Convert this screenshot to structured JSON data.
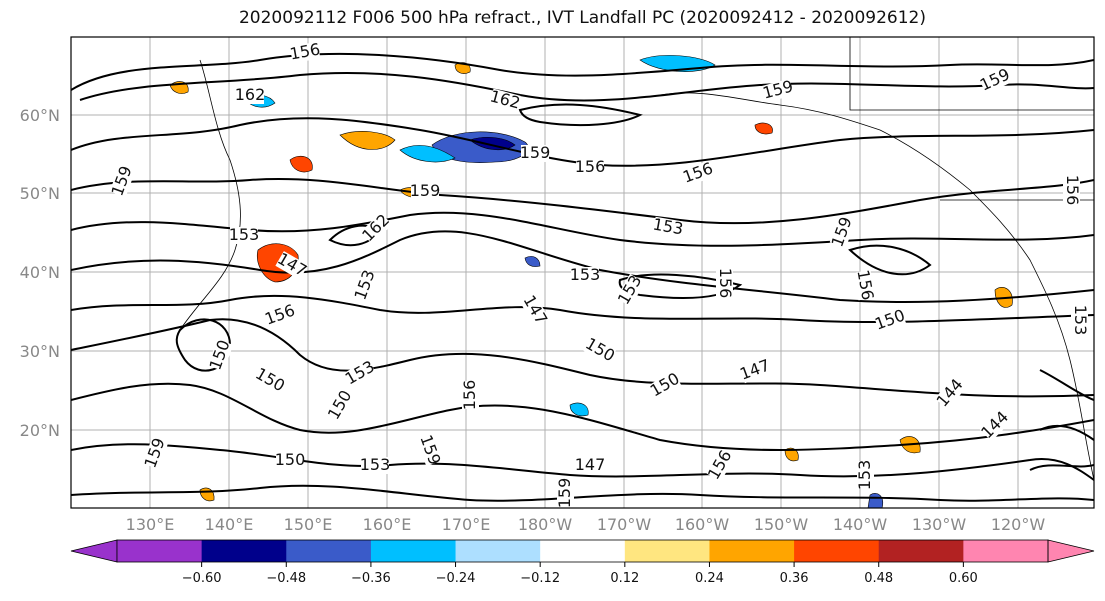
{
  "title": "2020092112 F006 500 hPa refract., IVT Landfall PC (2020092412 - 2020092612)",
  "lat_labels": [
    "60°N",
    "50°N",
    "40°N",
    "30°N",
    "20°N"
  ],
  "lon_labels": [
    "130°E",
    "140°E",
    "150°E",
    "160°E",
    "170°E",
    "180°W",
    "170°W",
    "160°W",
    "150°W",
    "140°W",
    "130°W",
    "120°W"
  ],
  "colorbar": {
    "colors": [
      "#9932CC",
      "#00008B",
      "#3A5BC9",
      "#00BFFF",
      "#ADDFFF",
      "#FFFFFF",
      "#FFE680",
      "#FFA500",
      "#FF4500",
      "#B22222",
      "#FF85B0"
    ],
    "ticks": [
      "−0.60",
      "−0.48",
      "−0.36",
      "−0.24",
      "−0.12",
      "0.12",
      "0.24",
      "0.36",
      "0.48",
      "0.60"
    ]
  },
  "contour_labels": [
    "156",
    "162",
    "159",
    "159",
    "156",
    "156",
    "159",
    "159",
    "159",
    "153",
    "159",
    "153",
    "162",
    "147",
    "153",
    "153",
    "156",
    "156",
    "153",
    "147",
    "150",
    "156",
    "150",
    "150",
    "147",
    "150",
    "156",
    "153",
    "150",
    "144",
    "144",
    "159",
    "150",
    "153",
    "147",
    "159",
    "153",
    "156",
    "159",
    "150",
    "156",
    "162",
    "153"
  ]
}
